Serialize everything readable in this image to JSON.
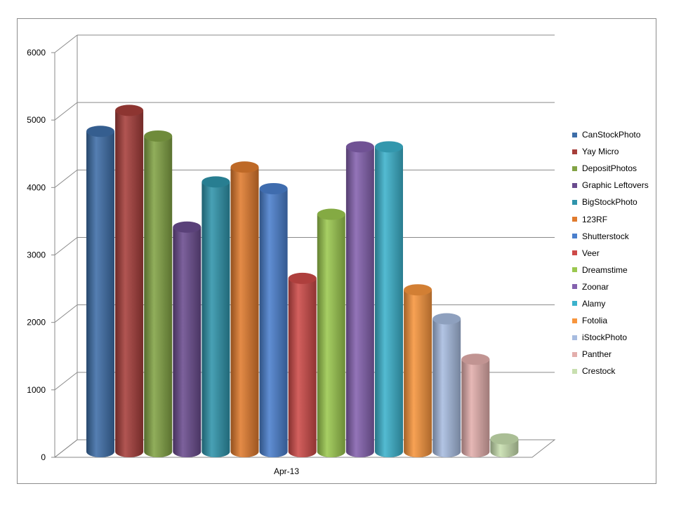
{
  "chart_data": {
    "type": "bar",
    "categories": [
      "Apr-13"
    ],
    "series": [
      {
        "name": "CanStockPhoto",
        "values": [
          4750
        ],
        "color": "#3e6ea8"
      },
      {
        "name": "Yay Micro",
        "values": [
          5060
        ],
        "color": "#a63e3a"
      },
      {
        "name": "DepositPhotos",
        "values": [
          4680
        ],
        "color": "#82a345"
      },
      {
        "name": "Graphic Leftovers",
        "values": [
          3330
        ],
        "color": "#6a4c8e"
      },
      {
        "name": "BigStockPhoto",
        "values": [
          4000
        ],
        "color": "#2f94ab"
      },
      {
        "name": "123RF",
        "values": [
          4220
        ],
        "color": "#e07b2e"
      },
      {
        "name": "Shutterstock",
        "values": [
          3900
        ],
        "color": "#4a7fcd"
      },
      {
        "name": "Veer",
        "values": [
          2570
        ],
        "color": "#cd4a48"
      },
      {
        "name": "Dreamstime",
        "values": [
          3520
        ],
        "color": "#9bc84f"
      },
      {
        "name": "Zoonar",
        "values": [
          4520
        ],
        "color": "#8461ae"
      },
      {
        "name": "Alamy",
        "values": [
          4520
        ],
        "color": "#3cb2cc"
      },
      {
        "name": "Fotolia",
        "values": [
          2400
        ],
        "color": "#f7953d"
      },
      {
        "name": "iStockPhoto",
        "values": [
          1970
        ],
        "color": "#a7bce0"
      },
      {
        "name": "Panther",
        "values": [
          1370
        ],
        "color": "#e3aeac"
      },
      {
        "name": "Crestock",
        "values": [
          190
        ],
        "color": "#c8dfaf"
      }
    ],
    "yticks": [
      "0",
      "1000",
      "2000",
      "3000",
      "4000",
      "5000",
      "6000"
    ],
    "ylim": [
      0,
      6000
    ],
    "grid": true,
    "legend": "right",
    "style": "3d-cylinder"
  }
}
